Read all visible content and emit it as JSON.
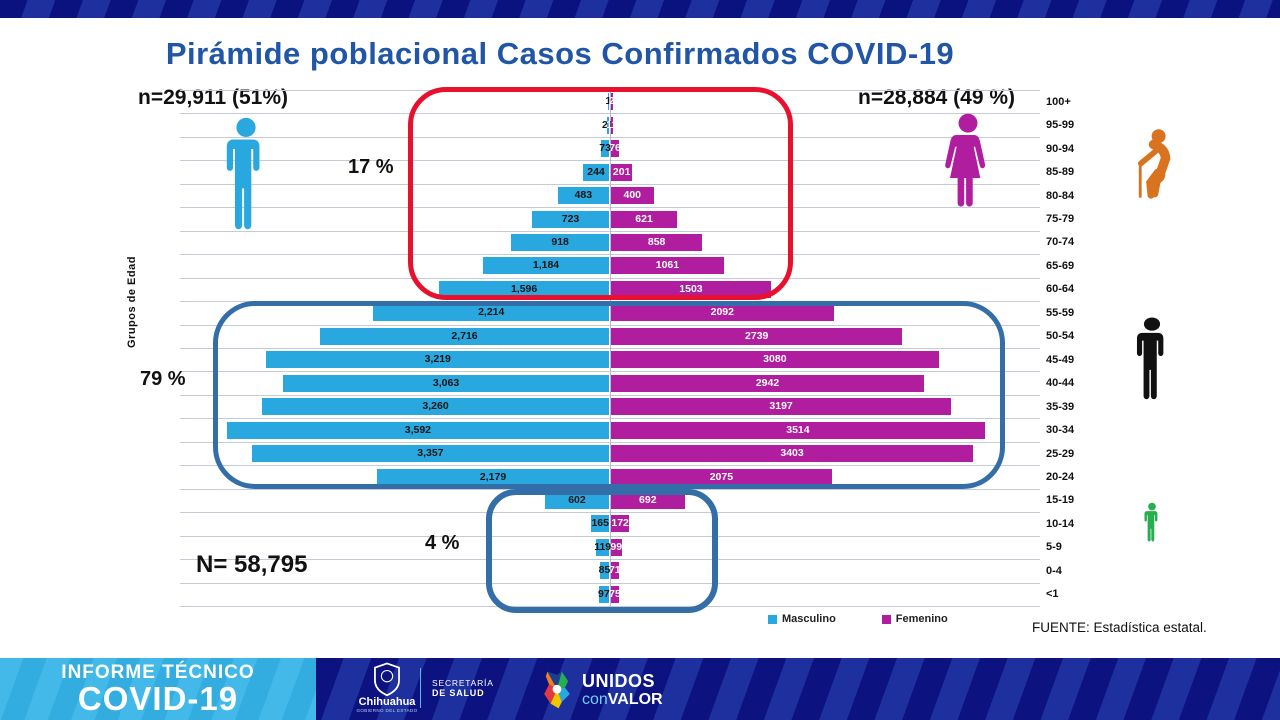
{
  "slide": {
    "title": "Pirámide poblacional Casos Confirmados COVID-19",
    "male_stat": "n=29,911 (51%)",
    "female_stat": "n=28,884 (49 %)",
    "total_label": "N= 58,795",
    "y_axis_label": "Grupos de Edad",
    "source": "FUENTE:  Estadística estatal.",
    "annotations": {
      "elderly_pct": "17 %",
      "adult_pct": "79 %",
      "child_pct": "4 %"
    }
  },
  "legend": {
    "male": "Masculino",
    "female": "Femenino"
  },
  "banner": {
    "report_line1": "INFORME TÉCNICO",
    "report_line2": "COVID-19",
    "gov_name": "Chihuahua",
    "gov_sub": "GOBIERNO DEL ESTADO",
    "ministry_line1": "SECRETARÍA",
    "ministry_line2": "DE SALUD",
    "brand_line1": "UNIDOS",
    "brand_con": "con",
    "brand_valor": "VALOR"
  },
  "colors": {
    "male_bar": "#29a8e0",
    "female_bar": "#b01d9e",
    "title_blue": "#2156a6",
    "annotation_red": "#e8112d",
    "annotation_blue": "#336ea8",
    "elderly_icon": "#d9731f",
    "adult_icon": "#111111",
    "child_icon": "#27ae50",
    "banner_navy": "#0c1280",
    "banner_lightblue": "#35b4e8"
  },
  "chart_data": {
    "type": "bar",
    "subtype": "population-pyramid",
    "title": "Pirámide poblacional Casos Confirmados COVID-19",
    "ylabel": "Grupos de Edad",
    "legend_position": "bottom",
    "grid": true,
    "age_groups": [
      "100+",
      "95-99",
      "90-94",
      "85-89",
      "80-84",
      "75-79",
      "70-74",
      "65-69",
      "60-64",
      "55-59",
      "50-54",
      "45-49",
      "40-44",
      "35-39",
      "30-34",
      "25-29",
      "20-24",
      "15-19",
      "10-14",
      "5-9",
      "0-4",
      "<1"
    ],
    "series": [
      {
        "name": "Masculino",
        "color": "#29a8e0",
        "total": 29911,
        "values": [
          1,
          21,
          73,
          244,
          483,
          723,
          918,
          1184,
          1596,
          2214,
          2716,
          3219,
          3063,
          3260,
          3592,
          3357,
          2179,
          602,
          165,
          119,
          85,
          97
        ],
        "labels": [
          "1",
          "21",
          "73",
          "244",
          "483",
          "723",
          "918",
          "1,184",
          "1,596",
          "2,214",
          "2,716",
          "3,219",
          "3,063",
          "3,260",
          "3,592",
          "3,357",
          "2,179",
          "602",
          "165",
          "119",
          "85",
          "97"
        ]
      },
      {
        "name": "Femenino",
        "color": "#b01d9e",
        "total": 28884,
        "values": [
          2,
          11,
          76,
          201,
          400,
          621,
          858,
          1061,
          1503,
          2092,
          2739,
          3080,
          2942,
          3197,
          3514,
          3403,
          2075,
          692,
          172,
          99,
          71,
          75
        ],
        "labels": [
          "2",
          "11",
          "76",
          "201",
          "400",
          "621",
          "858",
          "1061",
          "1503",
          "2092",
          "2739",
          "3080",
          "2942",
          "3197",
          "3514",
          "3403",
          "2075",
          "692",
          "172",
          "99",
          "71",
          "75"
        ]
      }
    ],
    "totals": {
      "male": "n=29,911 (51%)",
      "female": "n=28,884 (49 %)",
      "overall": "N= 58,795"
    },
    "highlight_groups": [
      {
        "label": "17 %",
        "age_range": "60-64 to 100+",
        "outline_color": "#e8112d"
      },
      {
        "label": "79 %",
        "age_range": "20-24 to 55-59",
        "outline_color": "#336ea8"
      },
      {
        "label": "4 %",
        "age_range": "<1 to 15-19",
        "outline_color": "#336ea8"
      }
    ]
  }
}
